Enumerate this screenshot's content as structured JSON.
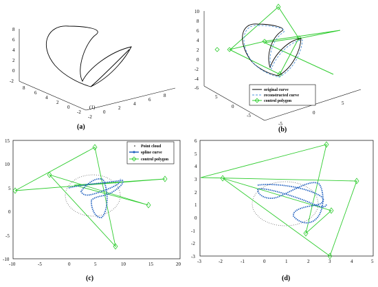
{
  "panels": {
    "a": {
      "label": "(a)",
      "z_ticks": [
        "8",
        "6",
        "4",
        "2",
        "0",
        "-2"
      ],
      "x_ticks": [
        "8",
        "6",
        "4",
        "2",
        "0",
        "-2"
      ],
      "y_ticks": [
        "-2",
        "0",
        "2",
        "4",
        "6",
        "8"
      ],
      "extra_tick": "(1)"
    },
    "b": {
      "label": "(b)",
      "z_ticks": [
        "10",
        "8",
        "6",
        "4",
        "2",
        "0",
        "-2",
        "-4",
        "-6"
      ],
      "x_ticks": [
        "5",
        "0",
        "-5"
      ],
      "y_ticks": [
        "-5",
        "0",
        "5"
      ],
      "legend": [
        "original curve",
        "reconstructed curve",
        "control polygon"
      ]
    },
    "c": {
      "label": "(c)",
      "x_ticks": [
        "-10",
        "-5",
        "0",
        "5",
        "10",
        "15",
        "20"
      ],
      "y_ticks": [
        "15",
        "10",
        "5",
        "0",
        "-5",
        "-10"
      ],
      "legend": [
        "Point cloud",
        "spline curve",
        "control polygon"
      ]
    },
    "d": {
      "label": "(d)",
      "x_ticks": [
        "-3",
        "-2",
        "-1",
        "0",
        "1",
        "2",
        "3",
        "4",
        "5"
      ],
      "y_ticks": [
        "6",
        "5",
        "4",
        "3",
        "2",
        "1",
        "0",
        "-1",
        "-2",
        "-3"
      ]
    }
  },
  "colors": {
    "curve": "#000000",
    "recon": "#4a90d9",
    "polygon": "#2ecc2e",
    "spline": "#1f5fbf"
  }
}
